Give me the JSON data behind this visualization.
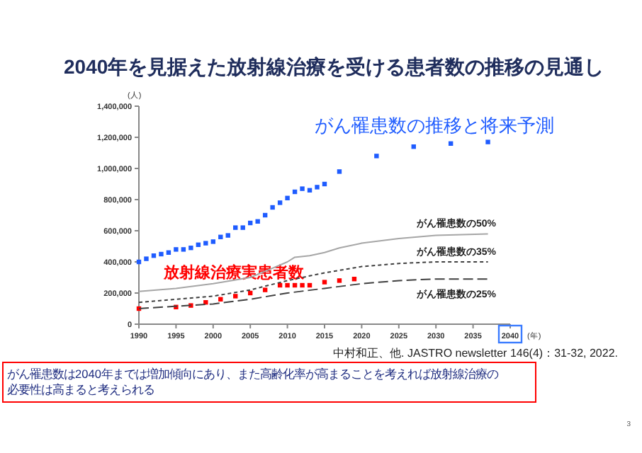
{
  "chart_data": {
    "type": "scatter",
    "title": "2040年を見据えた放射線治療を受ける患者数の推移の見通し",
    "xlabel": "(年)",
    "ylabel": "(人)",
    "xlim": [
      1990,
      2040
    ],
    "xticks": [
      1990,
      1995,
      2000,
      2005,
      2010,
      2015,
      2020,
      2025,
      2030,
      2035,
      2040
    ],
    "ylim": [
      0,
      1400000
    ],
    "yticks": [
      {
        "value": 0,
        "label": "0"
      },
      {
        "value": 200000,
        "label": "200,000"
      },
      {
        "value": 400000,
        "label": "400,000"
      },
      {
        "value": 600000,
        "label": "600,000"
      },
      {
        "value": 800000,
        "label": "800,000"
      },
      {
        "value": 1000000,
        "label": "1,000,000"
      },
      {
        "value": 1200000,
        "label": "1,200,000"
      },
      {
        "value": 1400000,
        "label": "1,400,000"
      }
    ],
    "grid": false,
    "marker": "square",
    "series": [
      {
        "name": "がん罹患数の推移と将来予測",
        "color": "#1f5cff",
        "type": "scatter",
        "x": [
          1990,
          1991,
          1992,
          1993,
          1994,
          1995,
          1996,
          1997,
          1998,
          1999,
          2000,
          2001,
          2002,
          2003,
          2004,
          2005,
          2006,
          2007,
          2008,
          2009,
          2010,
          2011,
          2012,
          2013,
          2014,
          2015,
          2017,
          2022,
          2027,
          2032,
          2037
        ],
        "values": [
          400000,
          420000,
          440000,
          450000,
          460000,
          480000,
          480000,
          490000,
          510000,
          520000,
          530000,
          560000,
          570000,
          620000,
          620000,
          650000,
          660000,
          700000,
          750000,
          780000,
          810000,
          850000,
          870000,
          860000,
          880000,
          900000,
          980000,
          1080000,
          1140000,
          1160000,
          1170000
        ]
      },
      {
        "name": "放射線治療実患者数",
        "color": "#ff0000",
        "type": "scatter",
        "x": [
          1990,
          1995,
          1997,
          1999,
          2001,
          2003,
          2005,
          2007,
          2009,
          2010,
          2011,
          2012,
          2013,
          2015,
          2017,
          2019
        ],
        "values": [
          100000,
          110000,
          120000,
          140000,
          160000,
          180000,
          200000,
          220000,
          250000,
          250000,
          250000,
          250000,
          250000,
          270000,
          280000,
          290000
        ]
      },
      {
        "name": "がん罹患数の50%",
        "color": "#a6a6a6",
        "type": "line",
        "line_style": "solid",
        "marker": "none",
        "x": [
          1990,
          1995,
          2000,
          2005,
          2008,
          2010,
          2011,
          2013,
          2015,
          2017,
          2020,
          2025,
          2030,
          2037
        ],
        "values": [
          210000,
          230000,
          260000,
          300000,
          360000,
          400000,
          430000,
          440000,
          460000,
          490000,
          520000,
          550000,
          570000,
          580000
        ]
      },
      {
        "name": "がん罹患数の35%",
        "color": "#404040",
        "type": "line",
        "line_style": "dotted",
        "marker": "none",
        "x": [
          1990,
          2000,
          2005,
          2010,
          2015,
          2020,
          2025,
          2030,
          2037
        ],
        "values": [
          140000,
          180000,
          220000,
          280000,
          330000,
          370000,
          390000,
          400000,
          400000
        ]
      },
      {
        "name": "がん罹患数の25%",
        "color": "#404040",
        "type": "line",
        "line_style": "dashed",
        "marker": "none",
        "x": [
          1990,
          2000,
          2005,
          2010,
          2015,
          2020,
          2025,
          2030,
          2037
        ],
        "values": [
          100000,
          130000,
          160000,
          200000,
          230000,
          260000,
          280000,
          290000,
          290000
        ]
      }
    ],
    "annotations": [
      "中村和正、他. JASTRO newsletter 146(4)：31-32, 2022.",
      "がん罹患数は2040年までは増加傾向にあり、また高齢化率が高まることを考えれば放射線治療の必要性は高まると考えられる",
      "3"
    ]
  }
}
